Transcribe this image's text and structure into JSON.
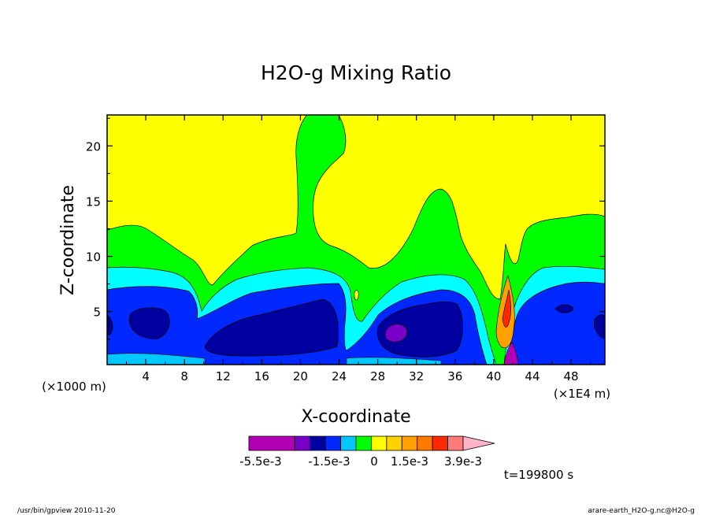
{
  "chart_data": {
    "type": "heatmap",
    "title": "H2O-g Mixing Ratio",
    "xlabel": "X-coordinate",
    "ylabel": "Z-coordinate",
    "x_unit_label": "(×1E4 m)",
    "y_unit_label": "(×1000 m)",
    "xlim": [
      0,
      51.5
    ],
    "ylim": [
      0.2,
      22.8
    ],
    "x_ticks": [
      4,
      8,
      12,
      16,
      20,
      24,
      28,
      32,
      36,
      40,
      44,
      48
    ],
    "y_ticks": [
      5,
      10,
      15,
      20
    ],
    "colorbar": {
      "labels": [
        "-5.5e-3",
        "-1.5e-3",
        "0",
        "1.5e-3",
        "3.9e-3"
      ],
      "level_boundaries": [
        -0.0055,
        -0.0035,
        -0.0025,
        -0.0015,
        -0.0009,
        -0.0004,
        0,
        0.0004,
        0.0009,
        0.0015,
        0.0021,
        0.0027,
        0.0039,
        0.0045
      ],
      "colors": [
        "#b400b4",
        "#7800c8",
        "#0000a0",
        "#0028ff",
        "#00c8ff",
        "#00ff00",
        "#ffff00",
        "#ffd200",
        "#ffa000",
        "#ff7800",
        "#ff2800",
        "#ff7a7a",
        "#ffb4c8"
      ]
    },
    "time_label": "t=199800 s",
    "grid": false
  },
  "footer": {
    "left": "/usr/bin/gpview   2010-11-20",
    "right": "arare-earth_H2O-g.nc@H2O-g"
  }
}
